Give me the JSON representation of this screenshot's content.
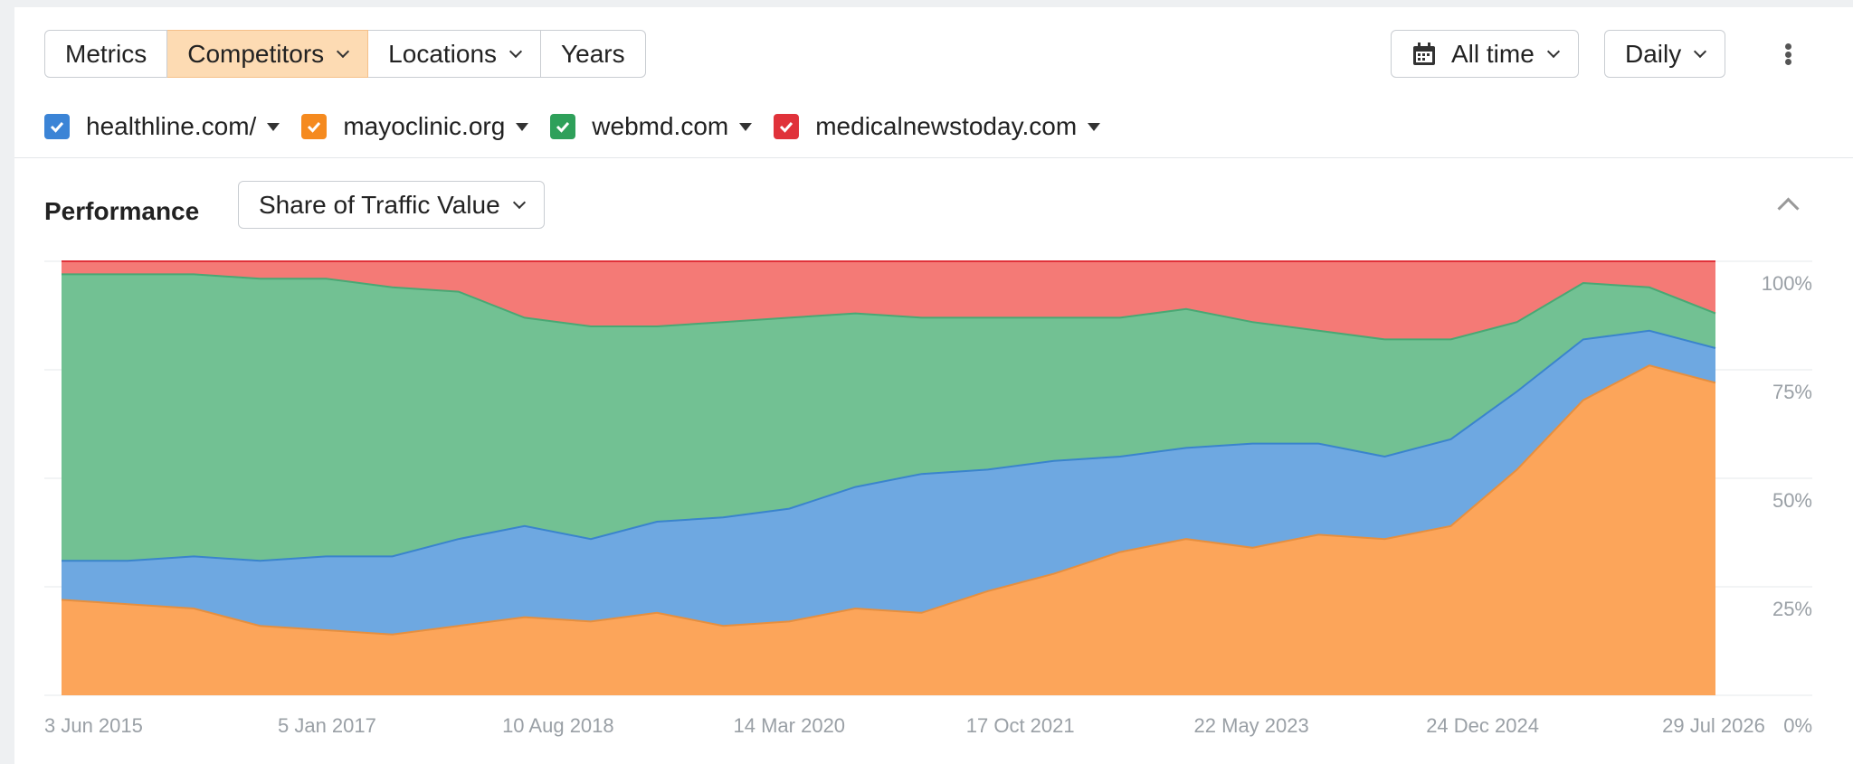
{
  "toolbar": {
    "tabs": [
      {
        "label": "Metrics",
        "active": false,
        "has_chevron": false
      },
      {
        "label": "Competitors",
        "active": true,
        "has_chevron": true
      },
      {
        "label": "Locations",
        "active": false,
        "has_chevron": true
      },
      {
        "label": "Years",
        "active": false,
        "has_chevron": false
      }
    ],
    "date_range": {
      "label": "All time",
      "icon": "calendar-icon"
    },
    "granularity": {
      "label": "Daily"
    },
    "more_icon": "more-vertical-icon"
  },
  "legend": [
    {
      "label": "healthline.com/",
      "color": "#3b84d6",
      "checked": true
    },
    {
      "label": "mayoclinic.org",
      "color": "#f58a1f",
      "checked": true
    },
    {
      "label": "webmd.com",
      "color": "#2ea05a",
      "checked": true
    },
    {
      "label": "medicalnewstoday.com",
      "color": "#e0323a",
      "checked": true
    }
  ],
  "section": {
    "title": "Performance",
    "metric_dropdown": "Share of Traffic Value",
    "collapse_icon": "chevron-up-icon"
  },
  "chart_data": {
    "type": "area",
    "stacked": true,
    "title": "",
    "xlabel": "",
    "ylabel": "",
    "ylim": [
      0,
      100
    ],
    "y_ticks": [
      "100%",
      "75%",
      "50%",
      "25%",
      "0%"
    ],
    "x_tick_labels": [
      "3 Jun 2015",
      "5 Jan 2017",
      "10 Aug 2018",
      "14 Mar 2020",
      "17 Oct 2021",
      "22 May 2023",
      "24 Dec 2024",
      "29 Jul 2026"
    ],
    "x": [
      "2015-06",
      "2016-01",
      "2016-07",
      "2017-01",
      "2017-07",
      "2018-01",
      "2018-07",
      "2018-09",
      "2019-01",
      "2019-07",
      "2020-01",
      "2020-07",
      "2021-01",
      "2021-07",
      "2022-01",
      "2022-07",
      "2023-01",
      "2023-07",
      "2024-01",
      "2024-07",
      "2025-01",
      "2025-04",
      "2025-07",
      "2026-01",
      "2026-04",
      "2026-07"
    ],
    "series": [
      {
        "name": "mayoclinic.org",
        "color": "#fca55a",
        "values": [
          22,
          21,
          20,
          16,
          15,
          14,
          16,
          18,
          17,
          19,
          16,
          17,
          20,
          19,
          24,
          28,
          33,
          36,
          34,
          37,
          36,
          39,
          52,
          68,
          76,
          72
        ]
      },
      {
        "name": "healthline.com/",
        "color": "#6ea8e1",
        "values": [
          9,
          10,
          12,
          15,
          17,
          18,
          20,
          21,
          19,
          21,
          25,
          26,
          28,
          32,
          28,
          26,
          22,
          21,
          24,
          21,
          19,
          20,
          18,
          14,
          8,
          8
        ]
      },
      {
        "name": "webmd.com",
        "color": "#72c193",
        "values": [
          66,
          66,
          65,
          65,
          64,
          62,
          57,
          48,
          49,
          45,
          45,
          44,
          40,
          36,
          35,
          33,
          32,
          32,
          28,
          26,
          27,
          23,
          16,
          13,
          10,
          8
        ]
      },
      {
        "name": "medicalnewstoday.com",
        "color": "#f47a76",
        "values": [
          3,
          3,
          3,
          4,
          4,
          6,
          7,
          13,
          15,
          15,
          14,
          13,
          12,
          13,
          13,
          13,
          13,
          11,
          14,
          16,
          18,
          18,
          14,
          5,
          6,
          12
        ]
      }
    ],
    "grid": true,
    "legend_position": "top-left"
  }
}
